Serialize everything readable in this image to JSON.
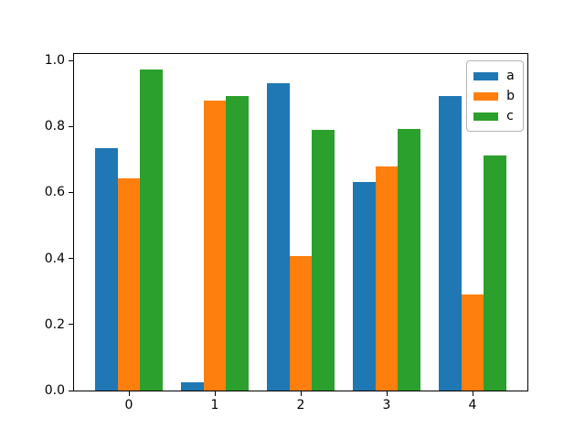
{
  "chart_data": {
    "type": "bar",
    "title": "",
    "xlabel": "",
    "ylabel": "",
    "categories": [
      "0",
      "1",
      "2",
      "3",
      "4"
    ],
    "series": [
      {
        "name": "a",
        "color": "#1f77b4",
        "values": [
          0.733,
          0.024,
          0.932,
          0.633,
          0.893
        ]
      },
      {
        "name": "b",
        "color": "#ff7f0e",
        "values": [
          0.644,
          0.877,
          0.406,
          0.678,
          0.29
        ]
      },
      {
        "name": "c",
        "color": "#2ca02c",
        "values": [
          0.972,
          0.893,
          0.79,
          0.793,
          0.712
        ]
      }
    ],
    "ylim": [
      0.0,
      1.02
    ],
    "yticks": [
      "0.0",
      "0.2",
      "0.4",
      "0.6",
      "0.8",
      "1.0"
    ],
    "grid": false,
    "legend_position": "upper right"
  },
  "figure": {
    "background_color": "#ffffff",
    "axis_color": "#000000"
  }
}
